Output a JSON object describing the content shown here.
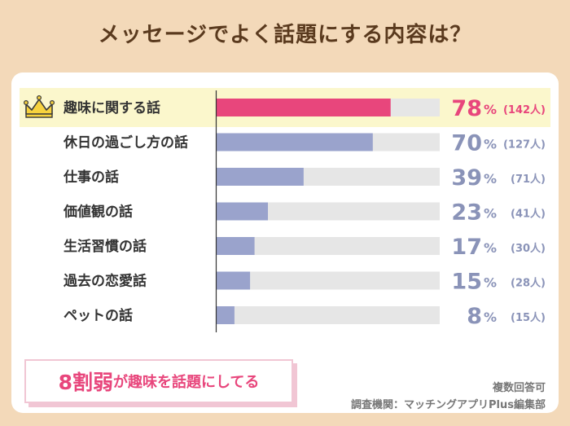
{
  "title": "メッセージでよく話題にする内容は？",
  "chart_data": {
    "type": "bar",
    "orientation": "horizontal",
    "title": "メッセージでよく話題にする内容は？",
    "categories": [
      "趣味に関する話",
      "休日の過ごし方の話",
      "仕事の話",
      "価値観の話",
      "生活習慣の話",
      "過去の恋愛話",
      "ペットの話"
    ],
    "values": [
      78,
      70,
      39,
      23,
      17,
      15,
      8
    ],
    "counts": [
      "(142人)",
      "(127人)",
      "(71人)",
      "(41人)",
      "(30人)",
      "(28人)",
      "(15人)"
    ],
    "unit": "%",
    "xlim": [
      0,
      100
    ],
    "highlight_index": 0
  },
  "colors": {
    "highlight": "#e8467c",
    "bar": "#9aa3cc",
    "track": "#e6e6e6",
    "highlight_bg": "#fbf7cc"
  },
  "tagline": {
    "big": "8割弱",
    "small": "が趣味を話題にしてる"
  },
  "notes": {
    "multiple": "複数回答可",
    "source": "調査機関：マッチングアプリPlus編集部"
  }
}
